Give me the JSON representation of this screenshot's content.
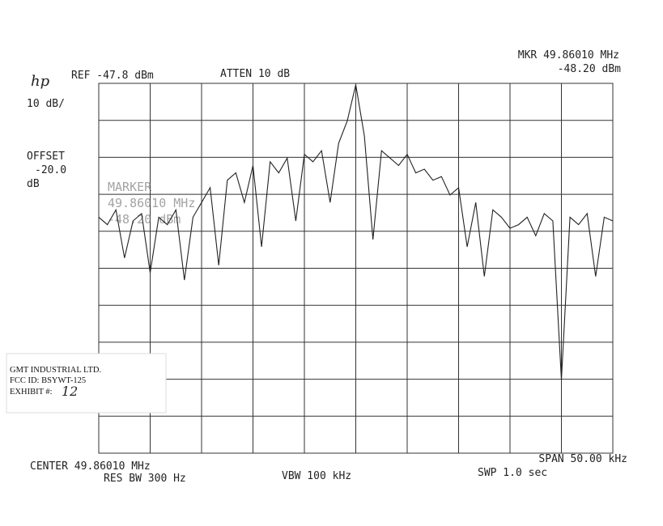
{
  "chart_data": {
    "type": "line",
    "brand": "hp",
    "ref": "REF -47.8 dBm",
    "atten": "ATTEN 10 dB",
    "marker_freq": "MKR 49.86010 MHz",
    "marker_level": "-48.20 dBm",
    "scale": "10 dB/",
    "offset": [
      "OFFSET",
      "-20.0",
      "dB"
    ],
    "marker_block": [
      "MARKER",
      "49.86010 MHz",
      "-48.20 dBm"
    ],
    "center": "CENTER 49.86010 MHz",
    "res_bw": "RES BW 300 Hz",
    "vbw": "VBW 100 kHz",
    "span": "SPAN 50.00 kHz",
    "sweep": "SWP 1.0 sec",
    "exhibit_label": [
      "GMT INDUSTRIAL LTD.",
      "FCC ID:  BSYWT-125",
      "EXHIBIT #:",
      "12"
    ],
    "ylim": [
      -147.8,
      -47.8
    ],
    "color": "#222222",
    "values": [
      -84,
      -86,
      -82,
      -95,
      -85,
      -83,
      -99,
      -84,
      -86,
      -82,
      -101,
      -84,
      -80,
      -76,
      -97,
      -74,
      -72,
      -80,
      -70,
      -92,
      -69,
      -72,
      -68,
      -85,
      -67,
      -69,
      -66,
      -80,
      -64,
      -58,
      -48.2,
      -62,
      -90,
      -66,
      -68,
      -70,
      -67,
      -72,
      -71,
      -74,
      -73,
      -78,
      -76,
      -92,
      -80,
      -100,
      -82,
      -84,
      -87,
      -86,
      -84,
      -89,
      -83,
      -85,
      -128,
      -84,
      -86,
      -83,
      -100,
      -84,
      -85
    ]
  }
}
